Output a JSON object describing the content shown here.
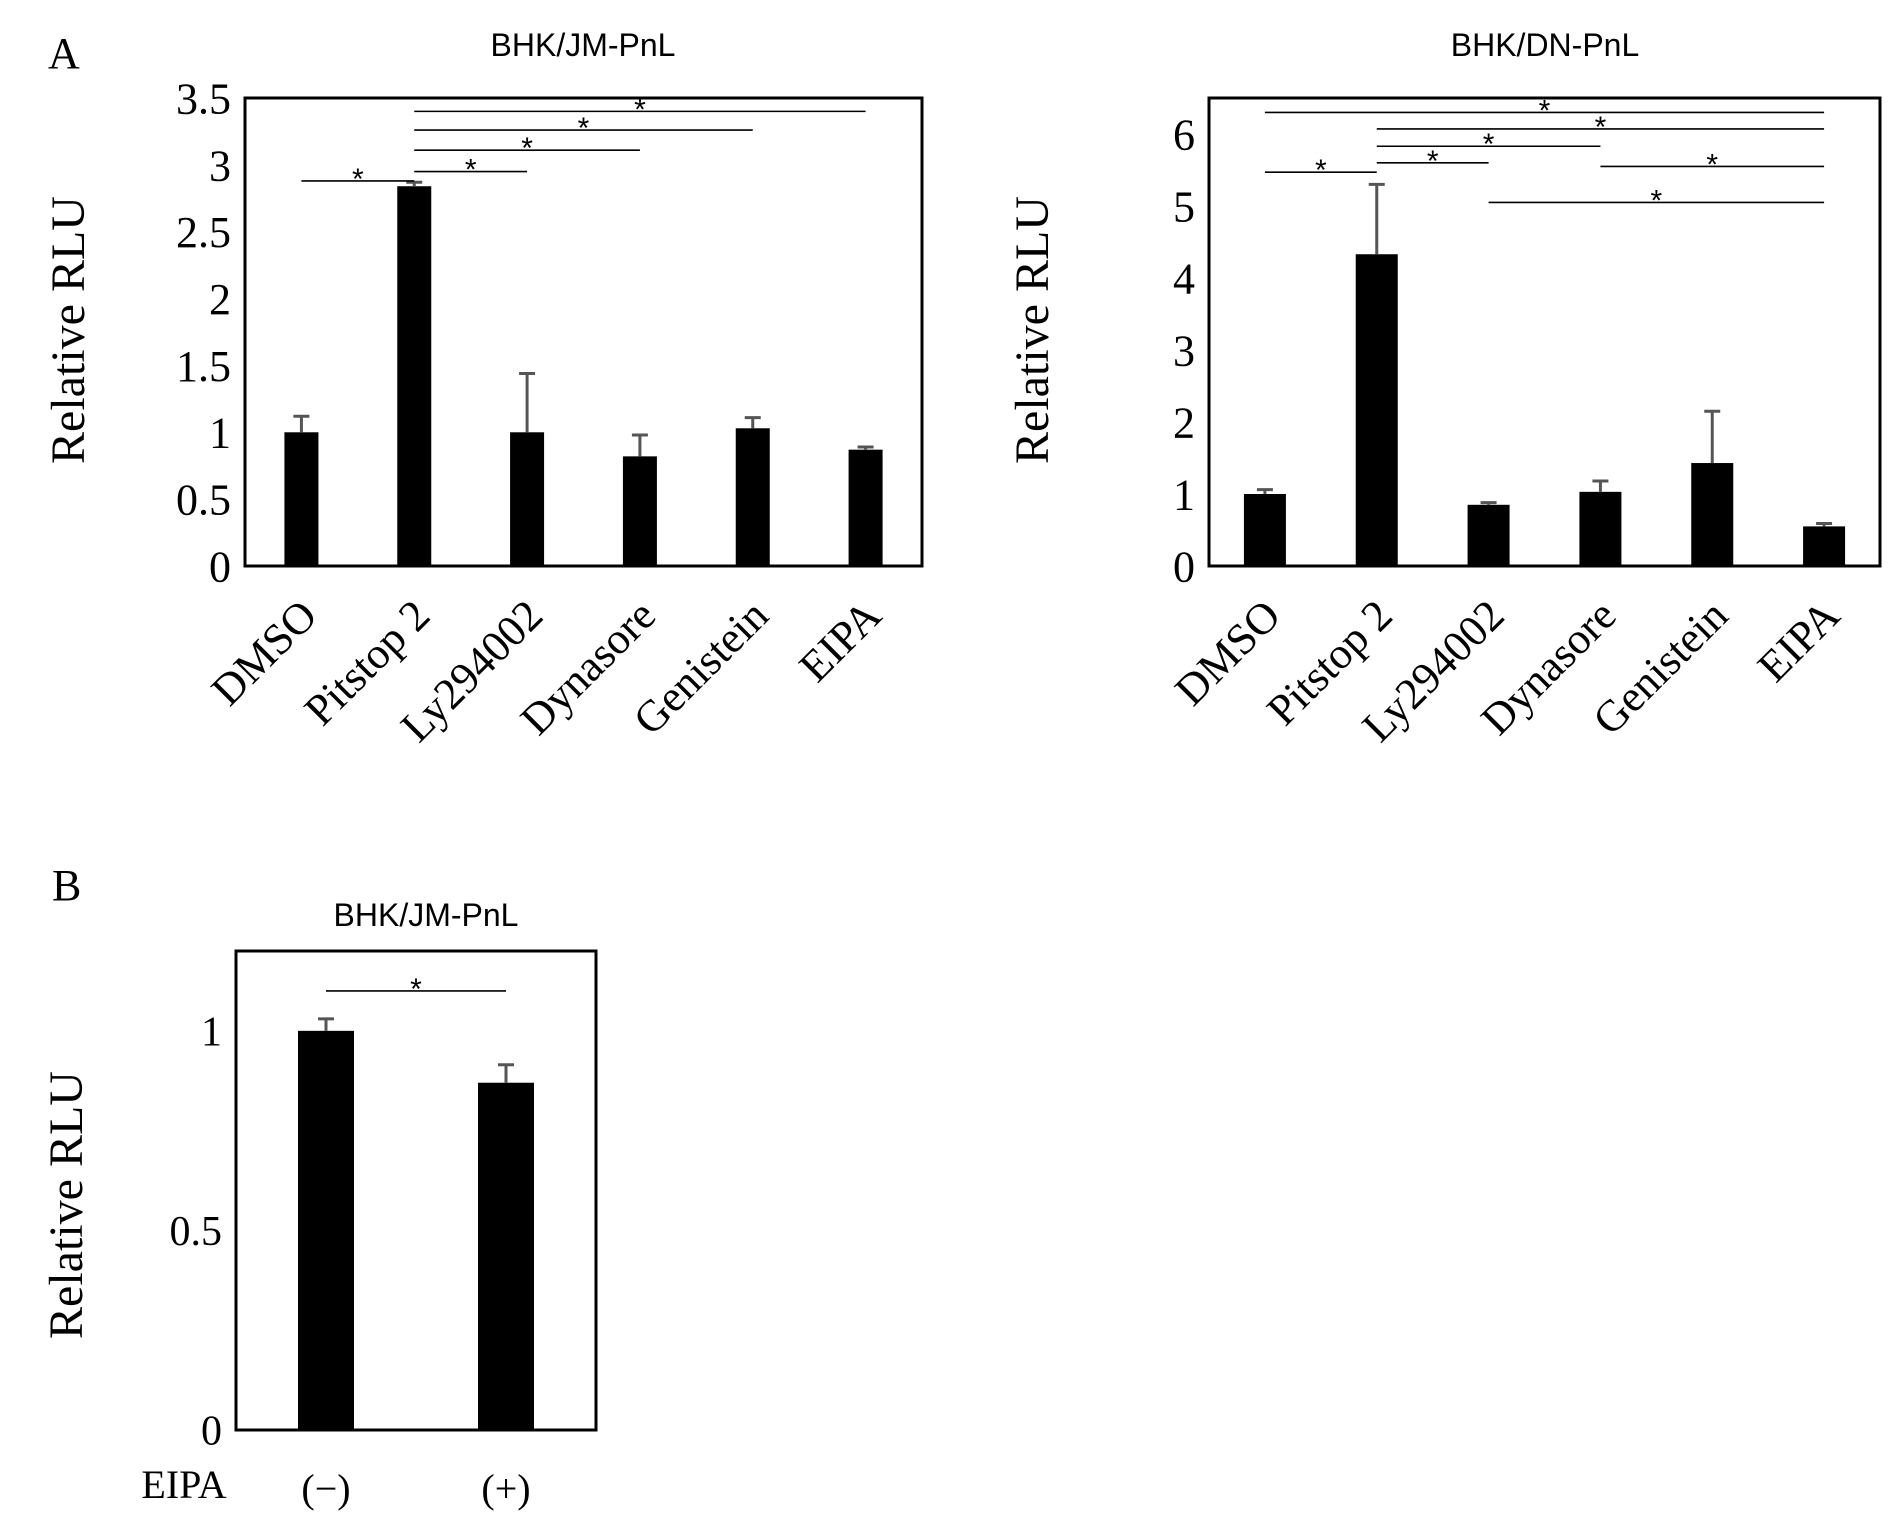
{
  "panels": {
    "a": {
      "label": "A"
    },
    "b": {
      "label": "B"
    }
  },
  "chart_data": [
    {
      "id": "chart-a1",
      "type": "bar",
      "title": "BHK/JM-PnL",
      "xlabel": "",
      "ylabel": "Relative RLU",
      "categories": [
        "DMSO",
        "Pitstop 2",
        "Ly294002",
        "Dynasore",
        "Genistein",
        "EIPA"
      ],
      "values": [
        1.0,
        2.84,
        1.0,
        0.82,
        1.03,
        0.87
      ],
      "errors": [
        0.12,
        0.03,
        0.44,
        0.16,
        0.08,
        0.02
      ],
      "ylim": [
        0,
        3.5
      ],
      "yticks": [
        0,
        0.5,
        1,
        1.5,
        2,
        2.5,
        3,
        3.5
      ],
      "ytick_labels": [
        "0",
        "0.5",
        "1",
        "1.5",
        "2",
        "2.5",
        "3",
        "3.5"
      ],
      "grid": false,
      "significance_label": "*",
      "significance": [
        {
          "from": 0,
          "to": 1,
          "y": 2.88
        },
        {
          "from": 1,
          "to": 2,
          "y": 2.95
        },
        {
          "from": 1,
          "to": 3,
          "y": 3.11
        },
        {
          "from": 1,
          "to": 4,
          "y": 3.26
        },
        {
          "from": 1,
          "to": 5,
          "y": 3.4
        }
      ]
    },
    {
      "id": "chart-a2",
      "type": "bar",
      "title": "BHK/DN-PnL",
      "xlabel": "",
      "ylabel": "Relative RLU",
      "categories": [
        "DMSO",
        "Pitstop 2",
        "Ly294002",
        "Dynasore",
        "Genistein",
        "EIPA"
      ],
      "values": [
        1.0,
        4.33,
        0.85,
        1.03,
        1.43,
        0.55
      ],
      "errors": [
        0.06,
        0.97,
        0.03,
        0.15,
        0.72,
        0.04
      ],
      "ylim": [
        0,
        6.5
      ],
      "yticks": [
        0,
        1,
        2,
        3,
        4,
        5,
        6
      ],
      "ytick_labels": [
        "0",
        "1",
        "2",
        "3",
        "4",
        "5",
        "6"
      ],
      "grid": false,
      "significance_label": "*",
      "significance": [
        {
          "from": 0,
          "to": 1,
          "y": 5.47
        },
        {
          "from": 1,
          "to": 2,
          "y": 5.6
        },
        {
          "from": 1,
          "to": 3,
          "y": 5.83
        },
        {
          "from": 1,
          "to": 5,
          "y": 6.07
        },
        {
          "from": 0,
          "to": 5,
          "y": 6.3
        },
        {
          "from": 3,
          "to": 5,
          "y": 5.55
        },
        {
          "from": 2,
          "to": 5,
          "y": 5.05
        }
      ]
    },
    {
      "id": "chart-b",
      "type": "bar",
      "title": "BHK/JM-PnL",
      "xlabel": "EIPA",
      "ylabel": "Relative RLU",
      "categories": [
        "(−)",
        "(+)"
      ],
      "values": [
        1.0,
        0.87
      ],
      "errors": [
        0.03,
        0.045
      ],
      "ylim": [
        0,
        1.2
      ],
      "yticks": [
        0,
        0.5,
        1
      ],
      "ytick_labels": [
        "0",
        "0.5",
        "1"
      ],
      "grid": false,
      "significance_label": "*",
      "significance": [
        {
          "from": 0,
          "to": 1,
          "y": 1.1
        }
      ]
    }
  ]
}
